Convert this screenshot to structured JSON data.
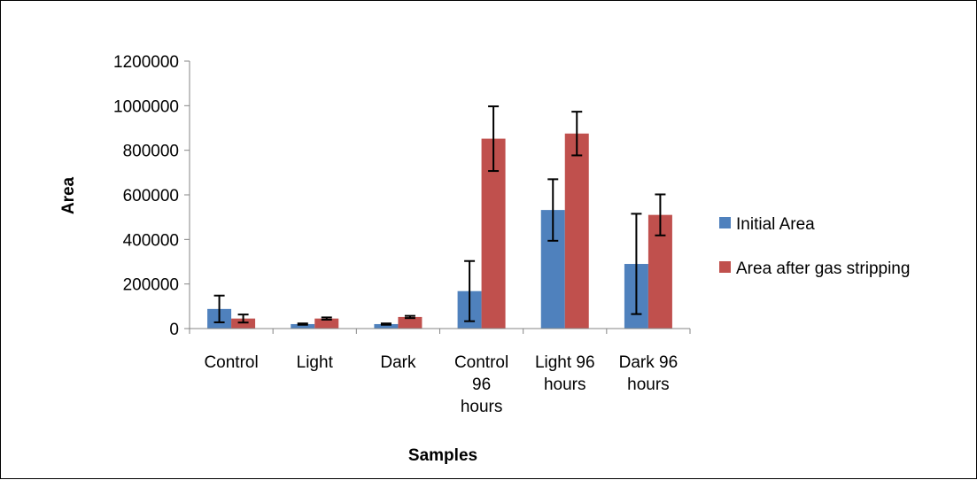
{
  "chart_data": {
    "type": "bar",
    "title": "",
    "xlabel": "Samples",
    "ylabel": "Area",
    "ylim": [
      0,
      1200000
    ],
    "yticks": [
      0,
      200000,
      400000,
      600000,
      800000,
      1000000,
      1200000
    ],
    "grid": false,
    "legend_position": "right",
    "categories": [
      [
        "Control"
      ],
      [
        "Light"
      ],
      [
        "Dark"
      ],
      [
        "Control",
        "96",
        "hours"
      ],
      [
        "Light 96",
        "hours"
      ],
      [
        "Dark 96",
        "hours"
      ]
    ],
    "series": [
      {
        "name": "Initial Area",
        "color": "#4F81BD",
        "values": [
          88000,
          20000,
          20000,
          168000,
          532000,
          290000
        ],
        "errors": [
          60000,
          3000,
          3000,
          135000,
          138000,
          225000
        ]
      },
      {
        "name": "Area after gas stripping",
        "color": "#C0504D",
        "values": [
          45000,
          45000,
          52000,
          852000,
          875000,
          510000
        ],
        "errors": [
          18000,
          5000,
          5000,
          145000,
          98000,
          92000
        ]
      }
    ]
  }
}
